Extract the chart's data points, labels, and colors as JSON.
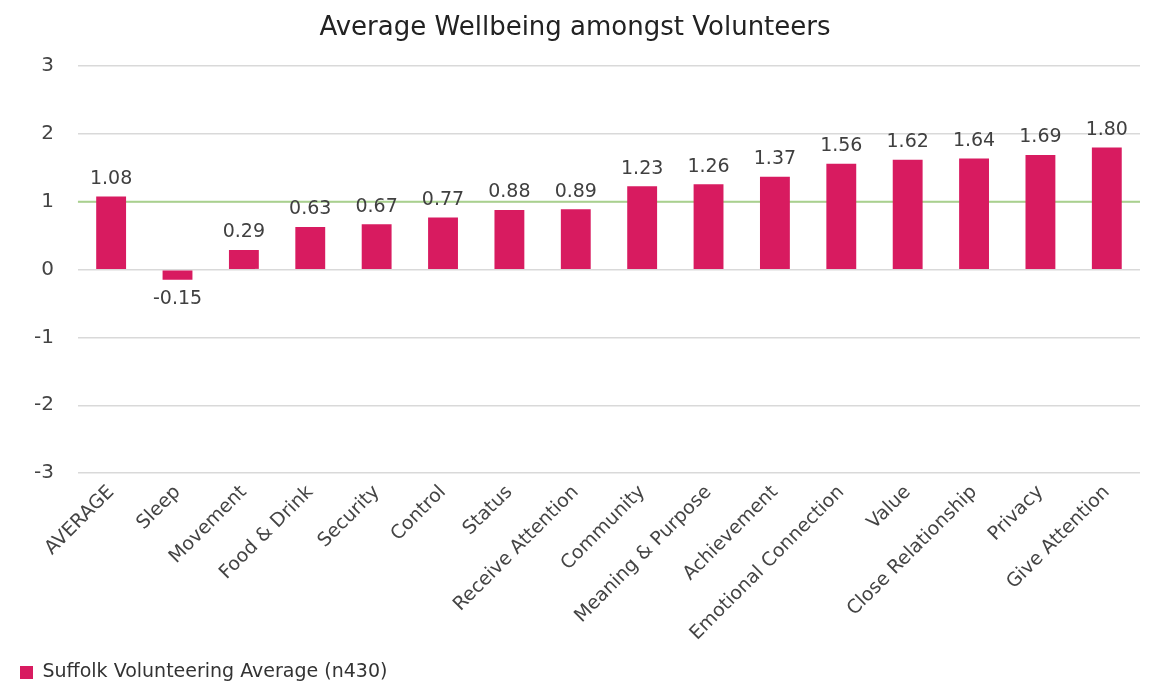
{
  "chart_data": {
    "type": "bar",
    "title": "Average Wellbeing amongst Volunteers",
    "categories": [
      "AVERAGE",
      "Sleep",
      "Movement",
      "Food & Drink",
      "Security",
      "Control",
      "Status",
      "Receive Attention",
      "Community",
      "Meaning & Purpose",
      "Achievement",
      "Emotional Connection",
      "Value",
      "Close Relationship",
      "Privacy",
      "Give Attention"
    ],
    "series": [
      {
        "name": "Suffolk Volunteering Average (n430)",
        "color": "#d81b60",
        "values": [
          1.08,
          -0.15,
          0.29,
          0.63,
          0.67,
          0.77,
          0.88,
          0.89,
          1.23,
          1.26,
          1.37,
          1.56,
          1.62,
          1.64,
          1.69,
          1.8
        ]
      }
    ],
    "value_labels": [
      "1.08",
      "-0.15",
      "0.29",
      "0.63",
      "0.67",
      "0.77",
      "0.88",
      "0.89",
      "1.23",
      "1.26",
      "1.37",
      "1.56",
      "1.62",
      "1.64",
      "1.69",
      "1.80"
    ],
    "ylim": [
      -3,
      3
    ],
    "yticks": [
      -3,
      -2,
      -1,
      0,
      1,
      2,
      3
    ],
    "grid": "y",
    "legend": "bottom left",
    "ref_lines": [
      {
        "axis": "y",
        "value": 1,
        "color": "#a9d18e"
      }
    ]
  }
}
